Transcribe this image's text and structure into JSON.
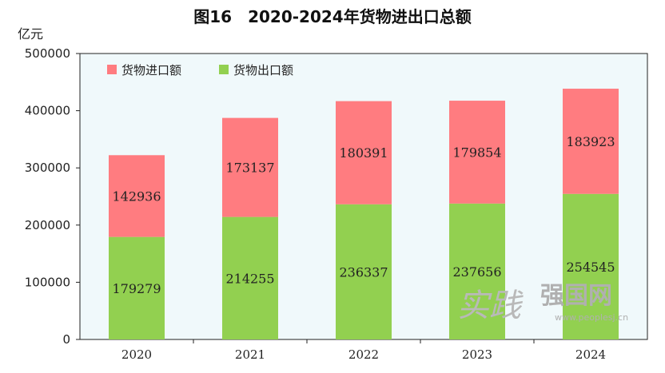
{
  "chart_data": {
    "type": "bar",
    "stacked": true,
    "title": "图16　2020-2024年货物进出口总额",
    "unit_label": "亿元",
    "categories": [
      "2020",
      "2021",
      "2022",
      "2023",
      "2024"
    ],
    "series": [
      {
        "name": "货物出口额",
        "values": [
          179279,
          214255,
          236337,
          237656,
          254545
        ],
        "color": "#92d050"
      },
      {
        "name": "货物进口额",
        "values": [
          142936,
          173137,
          180391,
          179854,
          183923
        ],
        "color": "#ff7c80"
      }
    ],
    "ylim": [
      0,
      500000
    ],
    "yticks": [
      0,
      100000,
      200000,
      300000,
      400000,
      500000
    ],
    "legend_position": "top-left",
    "grid": false,
    "plot_background": "#f0f9fb"
  },
  "watermark": {
    "script_text": "实践",
    "brand_text": "强国网",
    "url_text": "www.peoplesj.cn"
  }
}
